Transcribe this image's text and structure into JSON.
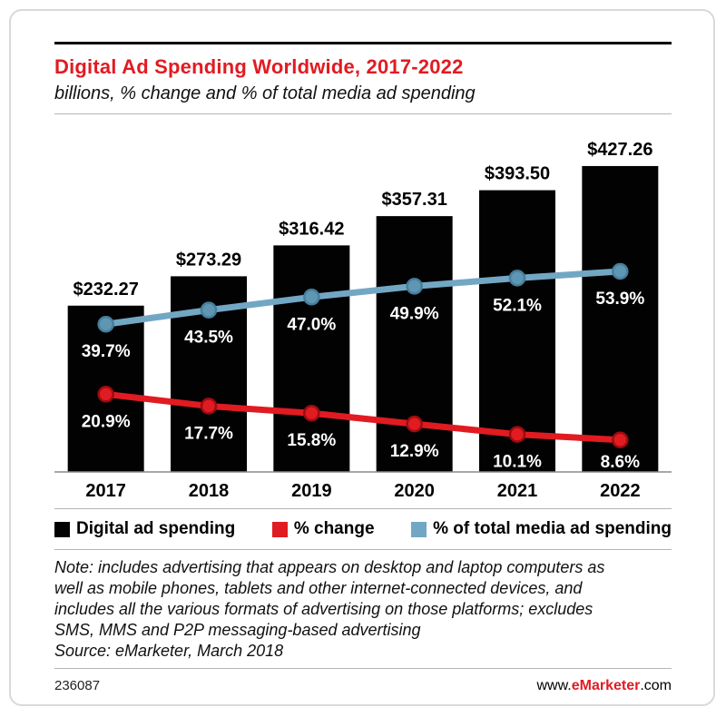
{
  "colors": {
    "accent_red": "#e11b22",
    "bar_black": "#020202",
    "line_red": "#e11b22",
    "line_red_dot_stroke": "#9e0b10",
    "line_blue": "#72a7c4",
    "line_blue_dot_fill": "#5e96b4",
    "line_blue_dot_stroke": "#477e9b",
    "axis_gray": "#8c8c8c",
    "rule_gray": "#b5b5b5"
  },
  "header": {
    "title": "Digital Ad Spending Worldwide, 2017-2022",
    "subtitle": "billions, % change and % of total media ad spending"
  },
  "chart_data": {
    "type": "bar",
    "subtype": "bar-with-two-line-overlays",
    "categories": [
      "2017",
      "2018",
      "2019",
      "2020",
      "2021",
      "2022"
    ],
    "series": [
      {
        "name": "Digital ad spending",
        "type": "bar",
        "unit": "billions of US dollars",
        "values": [
          232.27,
          273.29,
          316.42,
          357.31,
          393.5,
          427.26
        ],
        "labels": [
          "$232.27",
          "$273.29",
          "$316.42",
          "$357.31",
          "$393.50",
          "$427.26"
        ],
        "color": "#020202"
      },
      {
        "name": "% change",
        "type": "line",
        "unit": "percent",
        "values": [
          20.9,
          17.7,
          15.8,
          12.9,
          10.1,
          8.6
        ],
        "labels": [
          "20.9%",
          "17.7%",
          "15.8%",
          "12.9%",
          "10.1%",
          "8.6%"
        ],
        "color": "#e11b22",
        "dot_fill": "#e11b22",
        "dot_stroke": "#9e0b10"
      },
      {
        "name": "% of total media ad spending",
        "type": "line",
        "unit": "percent",
        "values": [
          39.7,
          43.5,
          47.0,
          49.9,
          52.1,
          53.9
        ],
        "labels": [
          "39.7%",
          "43.5%",
          "47.0%",
          "49.9%",
          "52.1%",
          "53.9%"
        ],
        "color": "#72a7c4",
        "dot_fill": "#5e96b4",
        "dot_stroke": "#477e9b"
      }
    ],
    "ylim_bars": [
      0,
      450
    ],
    "ylim_pct": [
      0,
      95
    ],
    "grid": false,
    "legend_position": "bottom",
    "value_label_style": "white-bold-on-bars"
  },
  "legend": {
    "items": [
      {
        "label": "Digital ad spending",
        "color": "#020202"
      },
      {
        "label": "% change",
        "color": "#e11b22"
      },
      {
        "label": "% of total media ad spending",
        "color": "#72a7c4"
      }
    ]
  },
  "note": {
    "text": "Note: includes advertising that appears on desktop and laptop computers as well as mobile phones, tablets and other internet-connected devices, and includes all the various formats of advertising on those platforms; excludes SMS, MMS and P2P messaging-based advertising",
    "source": "Source: eMarketer, March 2018"
  },
  "footer": {
    "chart_id": "236087",
    "site_prefix": "www.",
    "site_brand": "eMarketer",
    "site_suffix": ".com"
  }
}
